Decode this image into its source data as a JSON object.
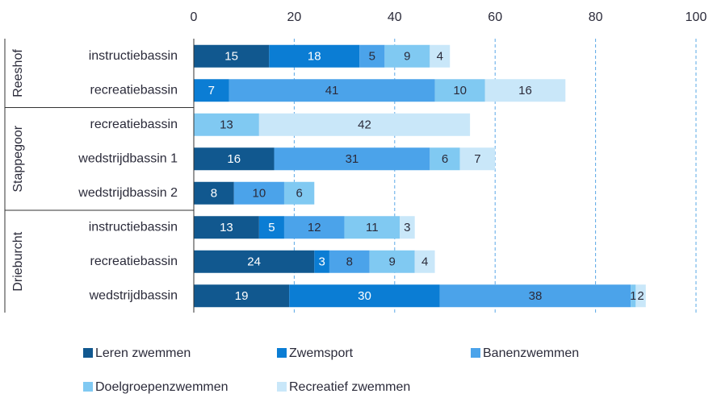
{
  "chart_data": {
    "type": "stacked-barh",
    "groups": [
      {
        "label": "Reeshof",
        "categories": [
          "instructiebassin",
          "recreatiebassin"
        ]
      },
      {
        "label": "Stappegoor",
        "categories": [
          "recreatiebassin",
          "wedstrijdbassin 1",
          "wedstrijdbassin 2"
        ]
      },
      {
        "label": "Drieburcht",
        "categories": [
          "instructiebassin",
          "recreatiebassin",
          "wedstrijdbassin"
        ]
      }
    ],
    "series": [
      {
        "name": "Leren zwemmen",
        "color": "#11588f",
        "values": [
          15,
          null,
          null,
          16,
          8,
          13,
          24,
          19
        ]
      },
      {
        "name": "Zwemsport",
        "color": "#0b7dd4",
        "values": [
          18,
          7,
          null,
          null,
          null,
          5,
          3,
          30
        ]
      },
      {
        "name": "Banenzwemmen",
        "color": "#4ba3ea",
        "values": [
          5,
          41,
          null,
          31,
          10,
          12,
          8,
          38
        ]
      },
      {
        "name": "Doelgroepenzwemmen",
        "color": "#80c9f2",
        "values": [
          9,
          10,
          13,
          6,
          6,
          11,
          9,
          1
        ]
      },
      {
        "name": "Recreatief zwemmen",
        "color": "#c9e7f9",
        "values": [
          4,
          16,
          42,
          7,
          null,
          3,
          4,
          2
        ]
      }
    ],
    "xlim": [
      0,
      100
    ],
    "xticks": [
      0,
      20,
      40,
      60,
      80,
      100
    ],
    "grid": true
  }
}
